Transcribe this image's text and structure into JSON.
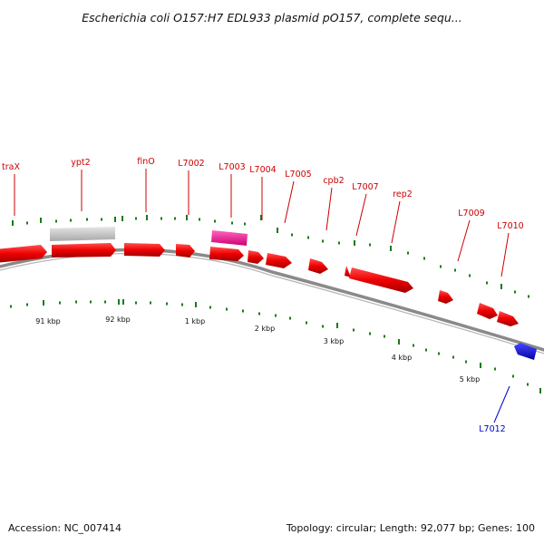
{
  "title": "Escherichia coli O157:H7 EDL933 plasmid pO157, complete sequ...",
  "footer": {
    "accession": "Accession: NC_007414",
    "summary": "Topology: circular; Length: 92,077 bp; Genes: 100"
  },
  "colors": {
    "forward_gene": "#ee0000",
    "reverse_gene": "#1010dd",
    "pseudo_gene": "#c8c8c8",
    "highlight_gene": "#ee1188",
    "label_forward": "#cc0000",
    "label_reverse": "#0000cc",
    "tick_color": "#1a7a1a",
    "backbone": "#8a8a8a"
  },
  "kbp_labels": [
    "91 kbp",
    "92 kbp",
    "1 kbp",
    "2 kbp",
    "3 kbp",
    "4 kbp",
    "5 kbp"
  ],
  "gene_labels": [
    {
      "name": "traX",
      "strand": "forward"
    },
    {
      "name": "ypt2",
      "strand": "forward"
    },
    {
      "name": "finO",
      "strand": "forward"
    },
    {
      "name": "L7002",
      "strand": "forward"
    },
    {
      "name": "L7003",
      "strand": "forward"
    },
    {
      "name": "L7004",
      "strand": "forward"
    },
    {
      "name": "L7005",
      "strand": "forward"
    },
    {
      "name": "cpb2",
      "strand": "forward"
    },
    {
      "name": "L7007",
      "strand": "forward"
    },
    {
      "name": "rep2",
      "strand": "forward"
    },
    {
      "name": "L7009",
      "strand": "forward"
    },
    {
      "name": "L7010",
      "strand": "forward"
    },
    {
      "name": "L7012",
      "strand": "reverse"
    }
  ]
}
